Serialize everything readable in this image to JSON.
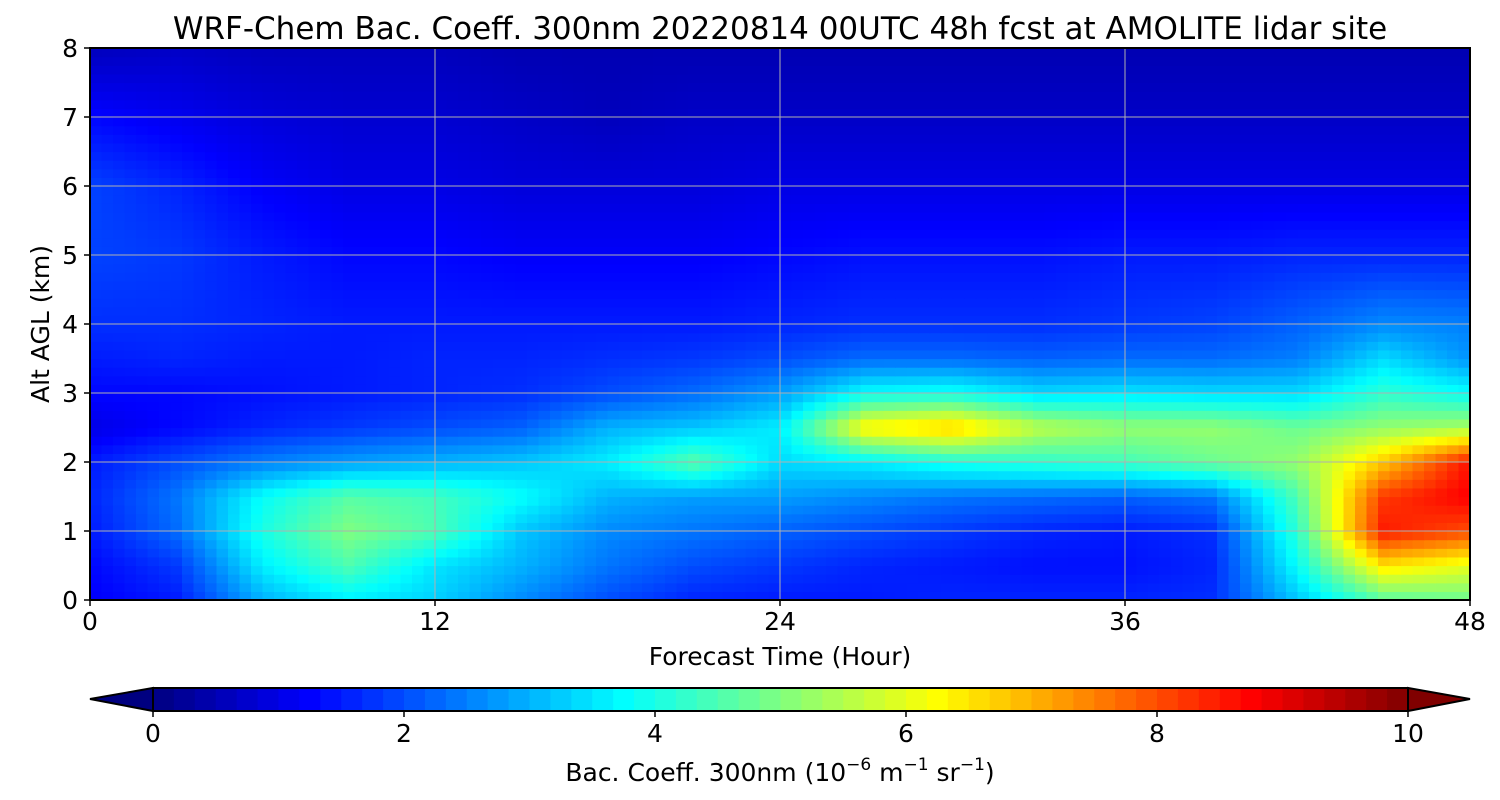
{
  "chart_data": {
    "type": "heatmap",
    "title": "WRF-Chem Bac. Coeff. 300nm  20220814 00UTC 48h fcst at AMOLITE lidar site",
    "xlabel": "Forecast Time (Hour)",
    "ylabel": "Alt AGL (km)",
    "xlim": [
      0,
      48
    ],
    "ylim": [
      0,
      8
    ],
    "xticks": [
      "0",
      "12",
      "24",
      "36",
      "48"
    ],
    "yticks": [
      "0",
      "1",
      "2",
      "3",
      "4",
      "5",
      "6",
      "7",
      "8"
    ],
    "grid": true,
    "colormap": "jet",
    "colorbar": {
      "label_main": "Bac. Coeff. 300nm  (10",
      "label_exp1": "−6",
      "label_mid": " m",
      "label_exp2": "−1",
      "label_mid2": " sr",
      "label_exp3": "−1",
      "label_end": ")",
      "range": [
        0,
        10
      ],
      "ticks": [
        "0",
        "2",
        "4",
        "6",
        "8",
        "10"
      ],
      "extend": "both"
    },
    "x": [
      0,
      3,
      6,
      9,
      12,
      15,
      18,
      21,
      24,
      27,
      30,
      33,
      36,
      39,
      42,
      45,
      48
    ],
    "y": [
      0,
      0.5,
      1,
      1.5,
      2,
      2.5,
      3,
      3.5,
      4,
      5,
      6,
      7,
      8
    ],
    "z": [
      [
        1.2,
        1.5,
        3.0,
        3.6,
        3.3,
        2.6,
        2.0,
        1.6,
        1.5,
        1.5,
        1.6,
        1.6,
        1.6,
        1.7,
        3.2,
        4.6,
        4.8
      ],
      [
        1.3,
        1.8,
        3.6,
        4.5,
        3.5,
        3.0,
        2.4,
        2.0,
        1.8,
        1.6,
        1.5,
        1.4,
        1.4,
        1.6,
        3.8,
        6.5,
        6.0
      ],
      [
        1.5,
        2.3,
        4.0,
        5.0,
        4.5,
        3.2,
        2.6,
        2.4,
        2.2,
        2.0,
        1.8,
        1.6,
        1.5,
        1.7,
        4.2,
        8.5,
        8.0
      ],
      [
        1.6,
        2.4,
        3.8,
        4.6,
        4.4,
        3.8,
        3.0,
        2.8,
        2.8,
        2.6,
        2.4,
        2.3,
        2.2,
        2.4,
        4.5,
        8.2,
        8.8
      ],
      [
        1.5,
        2.0,
        2.5,
        2.8,
        3.0,
        3.2,
        3.6,
        4.6,
        3.4,
        3.6,
        4.0,
        4.2,
        4.4,
        4.8,
        5.2,
        6.8,
        8.6
      ],
      [
        1.0,
        1.3,
        1.6,
        1.8,
        2.0,
        2.2,
        3.0,
        3.2,
        3.6,
        6.4,
        6.8,
        5.6,
        5.2,
        5.2,
        4.8,
        5.2,
        5.4
      ],
      [
        1.3,
        1.3,
        1.4,
        1.5,
        1.6,
        1.7,
        2.0,
        2.3,
        2.8,
        3.8,
        3.9,
        3.4,
        3.5,
        3.4,
        3.4,
        4.2,
        3.8
      ],
      [
        1.5,
        1.6,
        1.5,
        1.5,
        1.6,
        1.6,
        1.7,
        1.8,
        2.0,
        2.3,
        2.3,
        2.2,
        2.3,
        2.3,
        2.5,
        3.4,
        2.7
      ],
      [
        1.7,
        1.7,
        1.6,
        1.5,
        1.5,
        1.5,
        1.5,
        1.5,
        1.6,
        1.7,
        1.7,
        1.7,
        1.8,
        1.9,
        2.2,
        2.6,
        2.5
      ],
      [
        1.9,
        1.8,
        1.5,
        1.3,
        1.3,
        1.2,
        1.2,
        1.2,
        1.3,
        1.4,
        1.4,
        1.4,
        1.5,
        1.5,
        1.6,
        1.6,
        1.6
      ],
      [
        1.9,
        1.6,
        1.2,
        1.0,
        1.0,
        0.9,
        0.9,
        0.9,
        1.0,
        1.0,
        1.0,
        1.0,
        1.0,
        1.0,
        1.0,
        1.0,
        1.0
      ],
      [
        1.3,
        1.1,
        0.9,
        0.8,
        0.8,
        0.7,
        0.6,
        0.7,
        0.7,
        0.7,
        0.7,
        0.7,
        0.7,
        0.7,
        0.7,
        0.7,
        0.7
      ],
      [
        0.6,
        0.7,
        0.6,
        0.6,
        0.6,
        0.5,
        0.5,
        0.5,
        0.5,
        0.5,
        0.5,
        0.5,
        0.5,
        0.5,
        0.5,
        0.5,
        0.5
      ]
    ]
  }
}
